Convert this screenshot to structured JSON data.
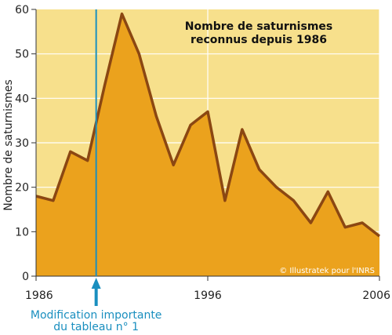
{
  "chart_data": {
    "type": "area",
    "title": [
      "Nombre de saturnismes",
      "reconnus depuis 1986"
    ],
    "ylabel": "Nombre de saturnismes",
    "xlabel": "",
    "x": [
      1986,
      1987,
      1988,
      1989,
      1990,
      1991,
      1992,
      1993,
      1994,
      1995,
      1996,
      1997,
      1998,
      1999,
      2000,
      2001,
      2002,
      2003,
      2004,
      2005,
      2006
    ],
    "values": [
      18,
      17,
      28,
      26,
      43,
      59,
      50,
      36,
      25,
      34,
      37,
      17,
      33,
      24,
      20,
      17,
      12,
      19,
      11,
      12,
      9
    ],
    "xlim": [
      1986,
      2006
    ],
    "ylim": [
      0,
      60
    ],
    "x_ticks": [
      "1986",
      "1996",
      "2006"
    ],
    "y_ticks": [
      "0",
      "10",
      "20",
      "30",
      "40",
      "50",
      "60"
    ],
    "grid": true,
    "annotation": {
      "x": 1989.5,
      "lines": [
        "Modification importante",
        "du tableau n° 1"
      ]
    },
    "credit": "© Illustratek pour l'INRS",
    "colors": {
      "background": "#f7e08c",
      "fill": "#eba21d",
      "line": "#8b4712",
      "grid": "#ffffff",
      "marker": "#1a8fbf"
    }
  }
}
